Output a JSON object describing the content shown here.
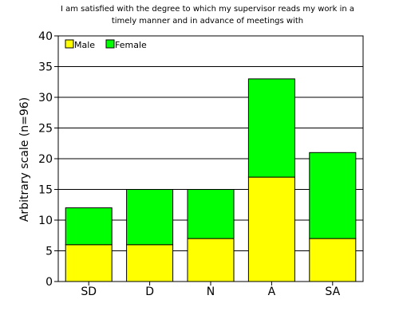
{
  "chart_data": {
    "type": "bar",
    "stacked": true,
    "title_lines": [
      "I am satisfied with the degree to which my supervisor reads my work in a",
      "timely manner and in advance of meetings with"
    ],
    "xlabel": "",
    "ylabel": "Arbitrary scale (n=96)",
    "ylim": [
      0,
      40
    ],
    "yticks": [
      0,
      5,
      10,
      15,
      20,
      25,
      30,
      35,
      40
    ],
    "grid": true,
    "legend_position": "top-left",
    "categories": [
      "SD",
      "D",
      "N",
      "A",
      "SA"
    ],
    "series": [
      {
        "name": "Male",
        "color": "#ffff00",
        "values": [
          6,
          6,
          7,
          17,
          7
        ]
      },
      {
        "name": "Female",
        "color": "#00ff00",
        "values": [
          6,
          9,
          8,
          16,
          14
        ]
      }
    ]
  }
}
